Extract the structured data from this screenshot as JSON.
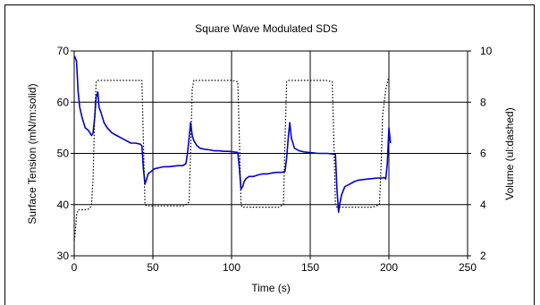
{
  "chart_data": {
    "type": "line",
    "title": "Square Wave Modulated SDS",
    "xlabel": "Time (s)",
    "ylabel_left": "Surface Tension (mN/m:solid)",
    "ylabel_right": "Volume (ul:dashed)",
    "xlim": [
      0,
      250
    ],
    "ylim_left": [
      30,
      70
    ],
    "ylim_right": [
      2,
      10
    ],
    "x_ticks": [
      0,
      50,
      100,
      150,
      200,
      250
    ],
    "y_ticks_left": [
      30,
      40,
      50,
      60,
      70
    ],
    "y_ticks_right": [
      2,
      4,
      6,
      8,
      10
    ],
    "grid": true,
    "series": [
      {
        "style": "solid",
        "color": "#0000cc",
        "axis": "left",
        "x": [
          0,
          0.5,
          1.5,
          2.5,
          3.5,
          5,
          7,
          9,
          11,
          12,
          13,
          14,
          15,
          15.8,
          17,
          19,
          21,
          24,
          27,
          30,
          33,
          36,
          39,
          42,
          43,
          44,
          45,
          46,
          47,
          49,
          51,
          54,
          57,
          60,
          63,
          66,
          69,
          71,
          72,
          73,
          74,
          75,
          76,
          77,
          78,
          80,
          83,
          86,
          89,
          92,
          95,
          98,
          101,
          104,
          105,
          106,
          107,
          108,
          109,
          111,
          114,
          117,
          120,
          123,
          126,
          129,
          132,
          134,
          135,
          136,
          137,
          138,
          140,
          143,
          146,
          149,
          152,
          155,
          158,
          161,
          164,
          166,
          167,
          168,
          169,
          170,
          172,
          175,
          178,
          181,
          184,
          187,
          190,
          193,
          196,
          197,
          198,
          199,
          200,
          201
        ],
        "values": [
          69,
          68.8,
          68,
          62,
          59,
          57,
          55,
          54.5,
          53.5,
          54,
          57,
          61,
          62,
          59,
          58,
          56,
          55,
          54,
          53.5,
          53,
          52.5,
          52,
          52,
          51.8,
          51.5,
          47,
          44,
          45,
          46,
          46.5,
          47,
          47.2,
          47.4,
          47.4,
          47.5,
          47.6,
          47.6,
          48,
          50,
          53,
          56,
          53.5,
          52.5,
          52,
          51.5,
          51,
          50.8,
          50.7,
          50.5,
          50.5,
          50.4,
          50.4,
          50.3,
          50.2,
          47,
          43,
          43.5,
          44.5,
          45,
          45.5,
          45.5,
          45.8,
          46,
          46,
          46.2,
          46.3,
          46.3,
          46.5,
          49,
          53,
          56,
          53,
          51,
          50.5,
          50.3,
          50.2,
          50.1,
          50,
          50,
          50,
          49.9,
          49.8,
          43,
          38.5,
          40.5,
          42,
          43.5,
          44,
          44.5,
          44.8,
          44.9,
          45,
          45.1,
          45.2,
          45.2,
          45.3,
          45,
          48,
          55,
          52
        ]
      },
      {
        "style": "dashed",
        "color": "#000000",
        "axis": "right",
        "x": [
          0,
          0.5,
          1.5,
          2.5,
          5,
          8,
          10,
          11,
          12,
          13,
          14,
          15,
          20,
          30,
          40,
          43,
          44,
          45,
          46,
          50,
          60,
          70,
          73,
          74,
          75,
          76,
          80,
          90,
          100,
          104,
          105,
          106,
          107,
          110,
          120,
          130,
          133,
          134,
          135,
          136,
          140,
          150,
          160,
          164,
          165,
          166,
          167,
          170,
          180,
          190,
          194,
          195,
          196,
          198,
          200
        ],
        "values": [
          2.6,
          2.8,
          3.6,
          3.8,
          3.8,
          3.8,
          3.85,
          4.0,
          5.0,
          7.5,
          8.8,
          8.85,
          8.85,
          8.85,
          8.85,
          8.85,
          6.5,
          4.0,
          3.95,
          3.95,
          3.95,
          3.95,
          4.1,
          6.0,
          8.5,
          8.85,
          8.85,
          8.85,
          8.85,
          8.8,
          6.5,
          4.0,
          3.9,
          3.9,
          3.9,
          3.9,
          4.0,
          6.5,
          8.8,
          8.85,
          8.85,
          8.85,
          8.85,
          8.8,
          6.5,
          4.0,
          3.9,
          3.9,
          3.9,
          3.9,
          4.0,
          5.5,
          7.5,
          8.5,
          9.0
        ]
      }
    ]
  }
}
